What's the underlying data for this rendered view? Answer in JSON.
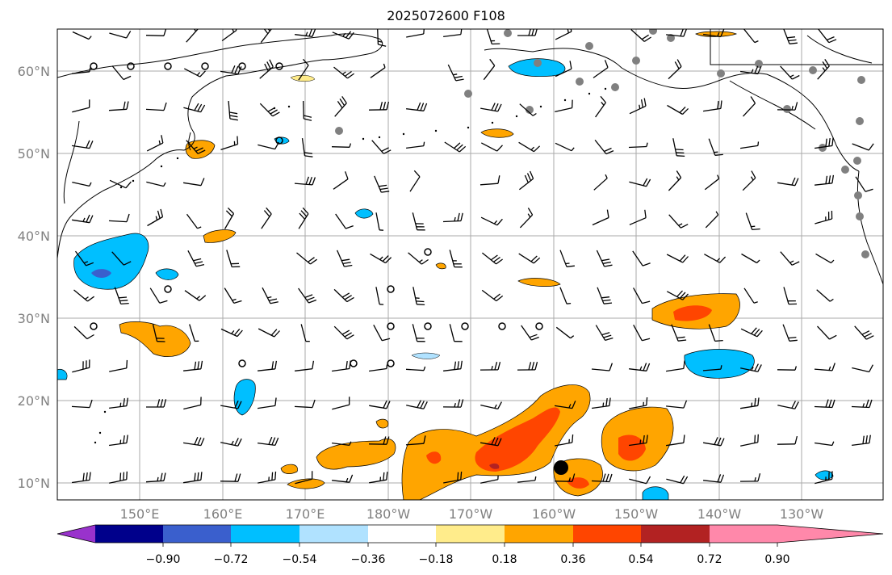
{
  "title": "2025072600 F108",
  "axes": {
    "lat_ticks": [
      "10°N",
      "20°N",
      "30°N",
      "40°N",
      "50°N",
      "60°N"
    ],
    "lon_ticks": [
      "150°E",
      "160°E",
      "170°E",
      "180°W",
      "170°W",
      "160°W",
      "150°W",
      "140°W",
      "130°W"
    ]
  },
  "colorbar": {
    "labels": [
      "−0.90",
      "−0.72",
      "−0.54",
      "−0.36",
      "−0.18",
      "0.18",
      "0.36",
      "0.54",
      "0.72",
      "0.90"
    ],
    "colors": [
      "#9932CC",
      "#00008B",
      "#3A5FCD",
      "#00BFFF",
      "#B0E2FF",
      "#FFFFFF",
      "#FFEC8B",
      "#FFA500",
      "#FF4500",
      "#B22222",
      "#FF88AA"
    ]
  },
  "colors": {
    "grid": "#aaaaaa",
    "coast": "#000000",
    "station": "#808080"
  }
}
